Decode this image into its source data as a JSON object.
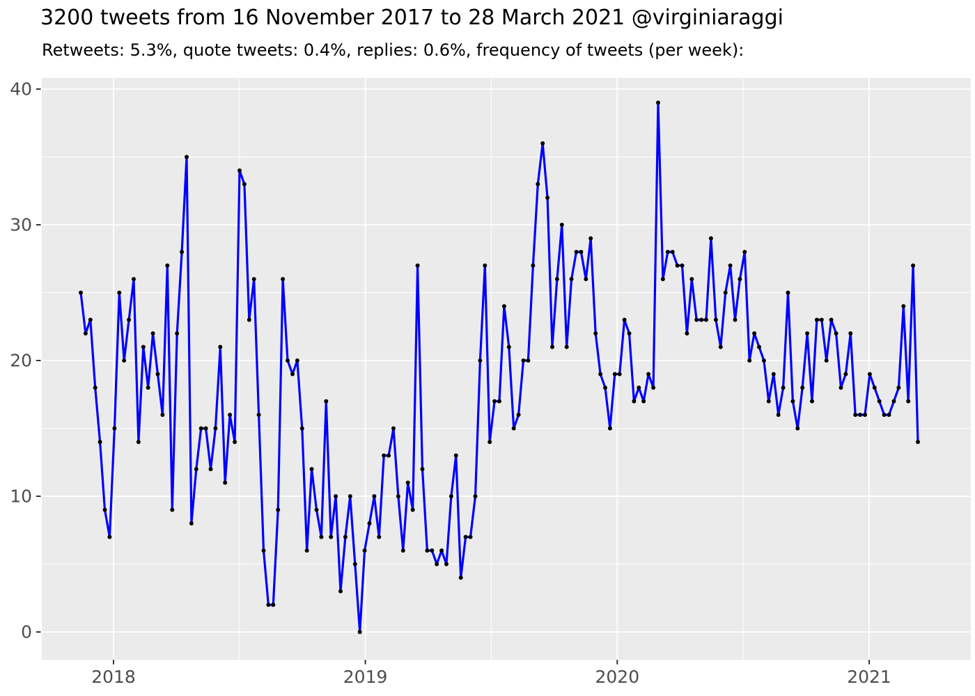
{
  "header": {
    "title": "3200 tweets from 16 November 2017 to 28 March 2021 @virginiaraggi",
    "subtitle": "Retweets: 5.3%, quote tweets: 0.4%, replies: 0.6%, frequency of tweets (per week):"
  },
  "chart_data": {
    "type": "line",
    "title": "3200 tweets from 16 November 2017 to 28 March 2021 @virginiaraggi",
    "subtitle": "Retweets: 5.3%, quote tweets: 0.4%, replies: 0.6%, frequency of tweets (per week):",
    "xlabel": "",
    "ylabel": "",
    "x_unit": "week",
    "x_range_label": [
      "16 November 2017",
      "28 March 2021"
    ],
    "x_tick_labels": [
      "2018",
      "2019",
      "2020",
      "2021"
    ],
    "y_ticks": [
      0,
      10,
      20,
      30,
      40
    ],
    "ylim": [
      0,
      40
    ],
    "grid": "on",
    "legend": "none",
    "series": [
      {
        "name": "tweets per week",
        "values": [
          25,
          22,
          23,
          18,
          14,
          9,
          7,
          15,
          25,
          20,
          23,
          26,
          14,
          21,
          18,
          22,
          19,
          16,
          27,
          9,
          22,
          28,
          35,
          8,
          12,
          15,
          15,
          12,
          15,
          21,
          11,
          16,
          14,
          34,
          33,
          23,
          26,
          16,
          6,
          2,
          2,
          9,
          26,
          20,
          19,
          20,
          15,
          6,
          12,
          9,
          7,
          17,
          7,
          10,
          3,
          7,
          10,
          5,
          0,
          6,
          8,
          10,
          7,
          13,
          13,
          15,
          10,
          6,
          11,
          9,
          27,
          12,
          6,
          6,
          5,
          6,
          5,
          10,
          13,
          4,
          7,
          7,
          10,
          20,
          27,
          14,
          17,
          17,
          24,
          21,
          15,
          16,
          20,
          20,
          27,
          33,
          36,
          32,
          21,
          26,
          30,
          21,
          26,
          28,
          28,
          26,
          29,
          22,
          19,
          18,
          15,
          19,
          19,
          23,
          22,
          17,
          18,
          17,
          19,
          18,
          39,
          26,
          28,
          28,
          27,
          27,
          22,
          26,
          23,
          23,
          23,
          29,
          23,
          21,
          25,
          27,
          23,
          26,
          28,
          20,
          22,
          21,
          20,
          17,
          19,
          16,
          18,
          25,
          17,
          15,
          18,
          22,
          17,
          23,
          23,
          20,
          23,
          22,
          18,
          19,
          22,
          16,
          16,
          16,
          19,
          18,
          17,
          16,
          16,
          17,
          18,
          24,
          17,
          27,
          14
        ]
      }
    ],
    "colors": {
      "line": "#0000FF",
      "point": "#000000",
      "panel_background": "#EBEBEB",
      "gridline": "#FFFFFF",
      "tick_text": "#4D4D4D",
      "tick_mark": "#333333",
      "title_text": "#000000"
    }
  }
}
